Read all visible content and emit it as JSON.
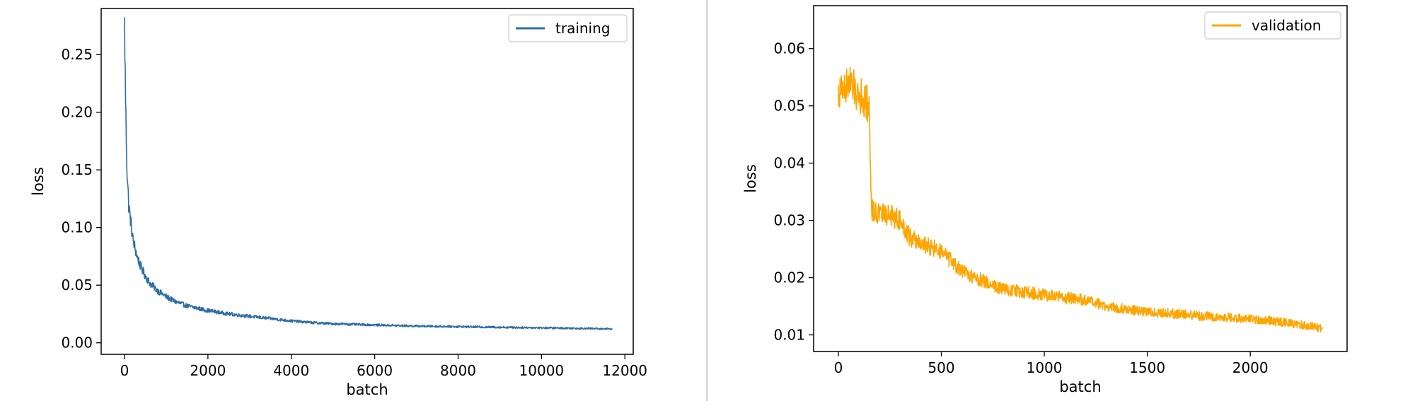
{
  "chart_data": [
    {
      "type": "line",
      "xlabel": "batch",
      "ylabel": "loss",
      "xlim": [
        -560,
        12200
      ],
      "ylim": [
        -0.01,
        0.29
      ],
      "xticks": [
        0,
        2000,
        4000,
        6000,
        8000,
        10000,
        12000
      ],
      "xtick_labels": [
        "0",
        "2000",
        "4000",
        "6000",
        "8000",
        "10000",
        "12000"
      ],
      "yticks": [
        0.0,
        0.05,
        0.1,
        0.15,
        0.2,
        0.25
      ],
      "ytick_labels": [
        "0.00",
        "0.05",
        "0.10",
        "0.15",
        "0.20",
        "0.25"
      ],
      "grid": false,
      "legend": "top-right",
      "series": [
        {
          "name": "training",
          "color": "#2f6fa3",
          "noise": 0.0042,
          "x": [
            0,
            10,
            30,
            60,
            100,
            150,
            200,
            300,
            400,
            500,
            600,
            800,
            1000,
            1200,
            1500,
            2000,
            2500,
            3000,
            3500,
            4000,
            4500,
            5000,
            5500,
            6000,
            6500,
            7000,
            8000,
            9000,
            10000,
            11000,
            11700
          ],
          "y": [
            0.275,
            0.25,
            0.2,
            0.15,
            0.12,
            0.105,
            0.09,
            0.075,
            0.065,
            0.058,
            0.052,
            0.045,
            0.04,
            0.036,
            0.032,
            0.028,
            0.025,
            0.023,
            0.021,
            0.019,
            0.0175,
            0.0165,
            0.016,
            0.0155,
            0.015,
            0.0145,
            0.014,
            0.0135,
            0.013,
            0.0125,
            0.012
          ]
        }
      ]
    },
    {
      "type": "line",
      "xlabel": "batch",
      "ylabel": "loss",
      "xlim": [
        -120,
        2470
      ],
      "ylim": [
        0.0071,
        0.0675
      ],
      "xticks": [
        0,
        500,
        1000,
        1500,
        2000
      ],
      "xtick_labels": [
        "0",
        "500",
        "1000",
        "1500",
        "2000"
      ],
      "yticks": [
        0.01,
        0.02,
        0.03,
        0.04,
        0.05,
        0.06
      ],
      "ytick_labels": [
        "0.01",
        "0.02",
        "0.03",
        "0.04",
        "0.05",
        "0.06"
      ],
      "grid": false,
      "legend": "top-right",
      "series": [
        {
          "name": "validation",
          "color": "#ffa500",
          "noise": 0.0042,
          "x": [
            0,
            50,
            100,
            150,
            160,
            200,
            250,
            300,
            350,
            400,
            500,
            600,
            700,
            800,
            900,
            1000,
            1100,
            1200,
            1300,
            1400,
            1500,
            1600,
            1700,
            1800,
            1900,
            2000,
            2100,
            2200,
            2300,
            2350
          ],
          "y": [
            0.052,
            0.054,
            0.052,
            0.05,
            0.032,
            0.031,
            0.031,
            0.03,
            0.027,
            0.026,
            0.0245,
            0.021,
            0.0195,
            0.018,
            0.0175,
            0.017,
            0.0165,
            0.016,
            0.015,
            0.0145,
            0.014,
            0.0138,
            0.0135,
            0.0132,
            0.013,
            0.0128,
            0.0125,
            0.012,
            0.0115,
            0.011
          ]
        }
      ]
    }
  ]
}
